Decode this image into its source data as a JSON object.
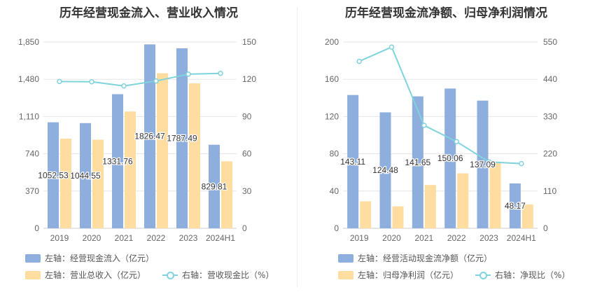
{
  "colors": {
    "bar_primary": "#8eaedd",
    "bar_secondary": "#ffdca0",
    "line": "#7fd3dc",
    "axis_text": "#666666",
    "grid": "#e6e6e6",
    "label_text": "#333333"
  },
  "chart_data": [
    {
      "type": "bar",
      "title": "历年经营现金流入、营业收入情况",
      "categories": [
        "2019",
        "2020",
        "2021",
        "2022",
        "2023",
        "2024H1"
      ],
      "left_axis": {
        "min": 0,
        "max": 1850,
        "ticks": [
          "0",
          "370",
          "740",
          "1,110",
          "1,480",
          "1,850"
        ]
      },
      "right_axis": {
        "min": 0,
        "max": 150,
        "ticks": [
          "0",
          "30",
          "60",
          "90",
          "120",
          "150"
        ]
      },
      "series": [
        {
          "name": "左轴：经营现金流入（亿元）",
          "axis": "left",
          "kind": "bar",
          "color": "#8eaedd",
          "values": [
            1052.53,
            1044.55,
            1331.76,
            1826.47,
            1787.49,
            829.81
          ],
          "labels": [
            "1052.53",
            "1044.55",
            "1331.76",
            "1826.47",
            "1787.49",
            "829.81"
          ]
        },
        {
          "name": "左轴：营业总收入（亿元）",
          "axis": "left",
          "kind": "bar",
          "color": "#ffdca0",
          "values": [
            890,
            880,
            1160,
            1540,
            1440,
            665
          ]
        },
        {
          "name": "右轴：营收现金比（%）",
          "axis": "right",
          "kind": "line",
          "color": "#7fd3dc",
          "values": [
            118.2,
            118.0,
            114.6,
            118.6,
            124.1,
            124.8
          ]
        }
      ],
      "legend": [
        "左轴：经营现金流入（亿元）",
        "左轴：营业总收入（亿元）",
        "右轴：营收现金比（%）"
      ]
    },
    {
      "type": "bar",
      "title": "历年经营现金流净额、归母净利润情况",
      "categories": [
        "2019",
        "2020",
        "2021",
        "2022",
        "2023",
        "2024H1"
      ],
      "left_axis": {
        "min": 0,
        "max": 200,
        "ticks": [
          "0",
          "40",
          "80",
          "120",
          "160",
          "200"
        ]
      },
      "right_axis": {
        "min": 0,
        "max": 550,
        "ticks": [
          "0",
          "110",
          "220",
          "330",
          "440",
          "550"
        ]
      },
      "series": [
        {
          "name": "左轴：经营活动现金流净额（亿元）",
          "axis": "left",
          "kind": "bar",
          "color": "#8eaedd",
          "values": [
            143.11,
            124.48,
            141.65,
            150.06,
            137.09,
            48.17
          ],
          "labels": [
            "143.11",
            "124.48",
            "141.65",
            "150.06",
            "137.09",
            "48.17"
          ]
        },
        {
          "name": "左轴：归母净利润（亿元）",
          "axis": "left",
          "kind": "bar",
          "color": "#ffdca0",
          "values": [
            29,
            23.5,
            46.5,
            59,
            70,
            25.5
          ]
        },
        {
          "name": "右轴：净现比（%）",
          "axis": "right",
          "kind": "line",
          "color": "#7fd3dc",
          "values": [
            493,
            535,
            304,
            256,
            196,
            191
          ]
        }
      ],
      "legend": [
        "左轴：经营活动现金流净额（亿元）",
        "左轴：归母净利润（亿元）",
        "右轴：净现比（%）"
      ]
    }
  ]
}
